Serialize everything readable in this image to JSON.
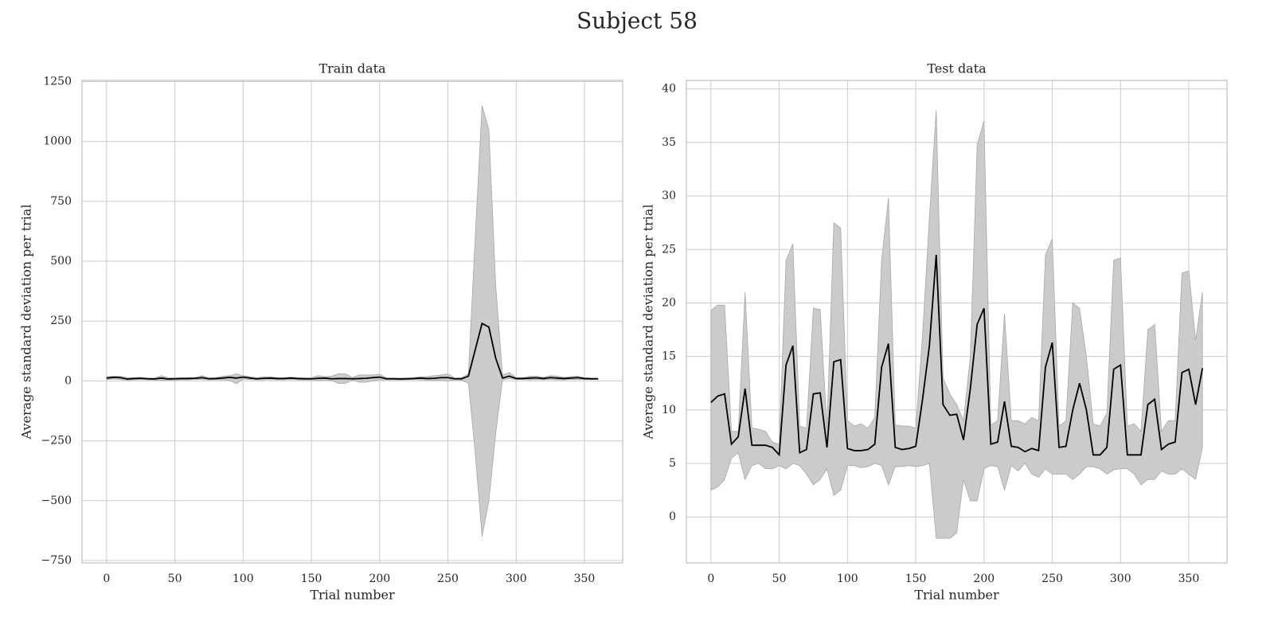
{
  "title": "Subject 58",
  "chart_data": [
    {
      "type": "line",
      "title": "Train data",
      "xlabel": "Trial number",
      "ylabel": "Average standard deviation per trial",
      "xlim": [
        -18,
        378
      ],
      "ylim": [
        -760,
        1255
      ],
      "grid": true,
      "xticks": [
        0,
        50,
        100,
        150,
        200,
        250,
        300,
        350
      ],
      "yticks": [
        {
          "value": -750,
          "label": "−750"
        },
        {
          "value": -500,
          "label": "−500"
        },
        {
          "value": -250,
          "label": "−250"
        },
        0,
        250,
        500,
        750,
        1000,
        1250
      ],
      "x": [
        0,
        5,
        10,
        15,
        20,
        25,
        30,
        35,
        40,
        45,
        50,
        55,
        60,
        65,
        70,
        75,
        80,
        85,
        90,
        95,
        100,
        105,
        110,
        115,
        120,
        125,
        130,
        135,
        140,
        145,
        150,
        155,
        160,
        165,
        170,
        175,
        180,
        185,
        190,
        195,
        200,
        205,
        210,
        215,
        220,
        225,
        230,
        235,
        240,
        245,
        250,
        255,
        260,
        265,
        270,
        275,
        280,
        285,
        290,
        295,
        300,
        305,
        310,
        315,
        320,
        325,
        330,
        335,
        340,
        345,
        350,
        355,
        360
      ],
      "series": [
        {
          "color": "#000000",
          "band_color": "#cbcbcb",
          "values": [
            12,
            15,
            14,
            8,
            10,
            11,
            9,
            8,
            12,
            8,
            9,
            10,
            10,
            11,
            14,
            9,
            10,
            12,
            15,
            12,
            16,
            12,
            9,
            11,
            12,
            10,
            10,
            12,
            10,
            9,
            9,
            11,
            12,
            9,
            10,
            10,
            9,
            10,
            11,
            14,
            16,
            9,
            9,
            8,
            9,
            10,
            12,
            10,
            11,
            14,
            14,
            9,
            9,
            20,
            130,
            240,
            225,
            95,
            12,
            20,
            10,
            10,
            12,
            13,
            10,
            14,
            12,
            10,
            12,
            14,
            10,
            9,
            9
          ],
          "upper": [
            18,
            20,
            20,
            14,
            14,
            15,
            13,
            12,
            22,
            14,
            13,
            14,
            14,
            15,
            22,
            13,
            14,
            20,
            22,
            30,
            22,
            18,
            13,
            18,
            17,
            14,
            14,
            16,
            14,
            13,
            14,
            22,
            18,
            20,
            30,
            30,
            15,
            25,
            25,
            25,
            28,
            13,
            13,
            12,
            13,
            14,
            18,
            18,
            22,
            25,
            30,
            12,
            14,
            30,
            600,
            1150,
            1050,
            400,
            25,
            35,
            14,
            14,
            20,
            20,
            15,
            22,
            20,
            15,
            18,
            20,
            14,
            12,
            12
          ],
          "lower": [
            5,
            8,
            6,
            3,
            5,
            6,
            5,
            4,
            3,
            3,
            4,
            5,
            5,
            6,
            6,
            5,
            5,
            5,
            3,
            -12,
            8,
            6,
            5,
            5,
            6,
            5,
            5,
            6,
            5,
            4,
            5,
            2,
            5,
            0,
            -10,
            -10,
            3,
            -5,
            -5,
            0,
            5,
            5,
            5,
            4,
            5,
            6,
            5,
            3,
            2,
            4,
            0,
            5,
            3,
            -10,
            -300,
            -650,
            -500,
            -220,
            5,
            10,
            6,
            6,
            5,
            6,
            5,
            6,
            5,
            5,
            6,
            7,
            6,
            6,
            6
          ]
        }
      ]
    },
    {
      "type": "line",
      "title": "Test data",
      "xlabel": "Trial number",
      "ylabel": "Average standard deviation per trial",
      "xlim": [
        -18,
        378
      ],
      "ylim": [
        -4.3,
        40.8
      ],
      "grid": true,
      "xticks": [
        0,
        50,
        100,
        150,
        200,
        250,
        300,
        350
      ],
      "yticks": [
        0,
        5,
        10,
        15,
        20,
        25,
        30,
        35,
        40
      ],
      "x": [
        0,
        5,
        10,
        15,
        20,
        25,
        30,
        35,
        40,
        45,
        50,
        55,
        60,
        65,
        70,
        75,
        80,
        85,
        90,
        95,
        100,
        105,
        110,
        115,
        120,
        125,
        130,
        135,
        140,
        145,
        150,
        155,
        160,
        165,
        170,
        175,
        180,
        185,
        190,
        195,
        200,
        205,
        210,
        215,
        220,
        225,
        230,
        235,
        240,
        245,
        250,
        255,
        260,
        265,
        270,
        275,
        280,
        285,
        290,
        295,
        300,
        305,
        310,
        315,
        320,
        325,
        330,
        335,
        340,
        345,
        350,
        355,
        360
      ],
      "series": [
        {
          "color": "#000000",
          "band_color": "#cbcbcb",
          "values": [
            10.7,
            11.3,
            11.5,
            6.8,
            7.5,
            12,
            6.7,
            6.7,
            6.7,
            6.5,
            5.8,
            14.2,
            16,
            6,
            6.3,
            11.5,
            11.6,
            6.5,
            14.5,
            14.7,
            6.4,
            6.2,
            6.2,
            6.3,
            6.8,
            14,
            16.2,
            6.5,
            6.3,
            6.4,
            6.6,
            11,
            16,
            24.5,
            10.5,
            9.5,
            9.6,
            7.2,
            12,
            18,
            19.5,
            6.8,
            7,
            10.8,
            6.6,
            6.5,
            6.1,
            6.4,
            6.2,
            14,
            16.3,
            6.5,
            6.6,
            10,
            12.5,
            10,
            5.8,
            5.8,
            6.5,
            13.8,
            14.2,
            5.8,
            5.8,
            5.8,
            10.5,
            11,
            6.3,
            6.8,
            7,
            13.5,
            13.8,
            10.5,
            13.9
          ],
          "upper": [
            19.3,
            19.8,
            19.8,
            8,
            8,
            21,
            8.3,
            8.2,
            8,
            7,
            6.8,
            24,
            25.5,
            8.5,
            8.3,
            19.5,
            19.4,
            8.3,
            27.5,
            27,
            9,
            8.5,
            8.7,
            8.3,
            9.3,
            24,
            29.8,
            8.6,
            8.5,
            8.5,
            8.3,
            17,
            28,
            38,
            13,
            11.5,
            10.5,
            9,
            15,
            34.8,
            37,
            8.6,
            9,
            19,
            9,
            9,
            8.7,
            9.3,
            9,
            24.5,
            26,
            8.5,
            9,
            20,
            19.5,
            15,
            8.7,
            8.5,
            9.7,
            24,
            24.2,
            8.5,
            8.7,
            8,
            17.5,
            18,
            8,
            9,
            9,
            22.8,
            23,
            16.5,
            21
          ],
          "lower": [
            2.5,
            2.8,
            3.5,
            5.5,
            6,
            3.5,
            4.8,
            5,
            4.5,
            4.5,
            4.8,
            4.5,
            5,
            4.8,
            4,
            3,
            3.5,
            4.5,
            2,
            2.5,
            4.8,
            4.8,
            4.6,
            4.7,
            5,
            4.8,
            3,
            4.7,
            4.7,
            4.8,
            4.7,
            4.8,
            5,
            -2,
            -2,
            -2,
            -1.5,
            3.5,
            1.5,
            1.5,
            4.5,
            4.8,
            4.7,
            2.5,
            4.8,
            4.3,
            5,
            4,
            3.7,
            4.5,
            4,
            4,
            4,
            3.5,
            4,
            4.7,
            4.7,
            4.5,
            4,
            4.4,
            4.5,
            4.5,
            4,
            3,
            3.5,
            3.5,
            4.3,
            4,
            4,
            4.5,
            4,
            3.5,
            6.5
          ]
        }
      ]
    }
  ]
}
